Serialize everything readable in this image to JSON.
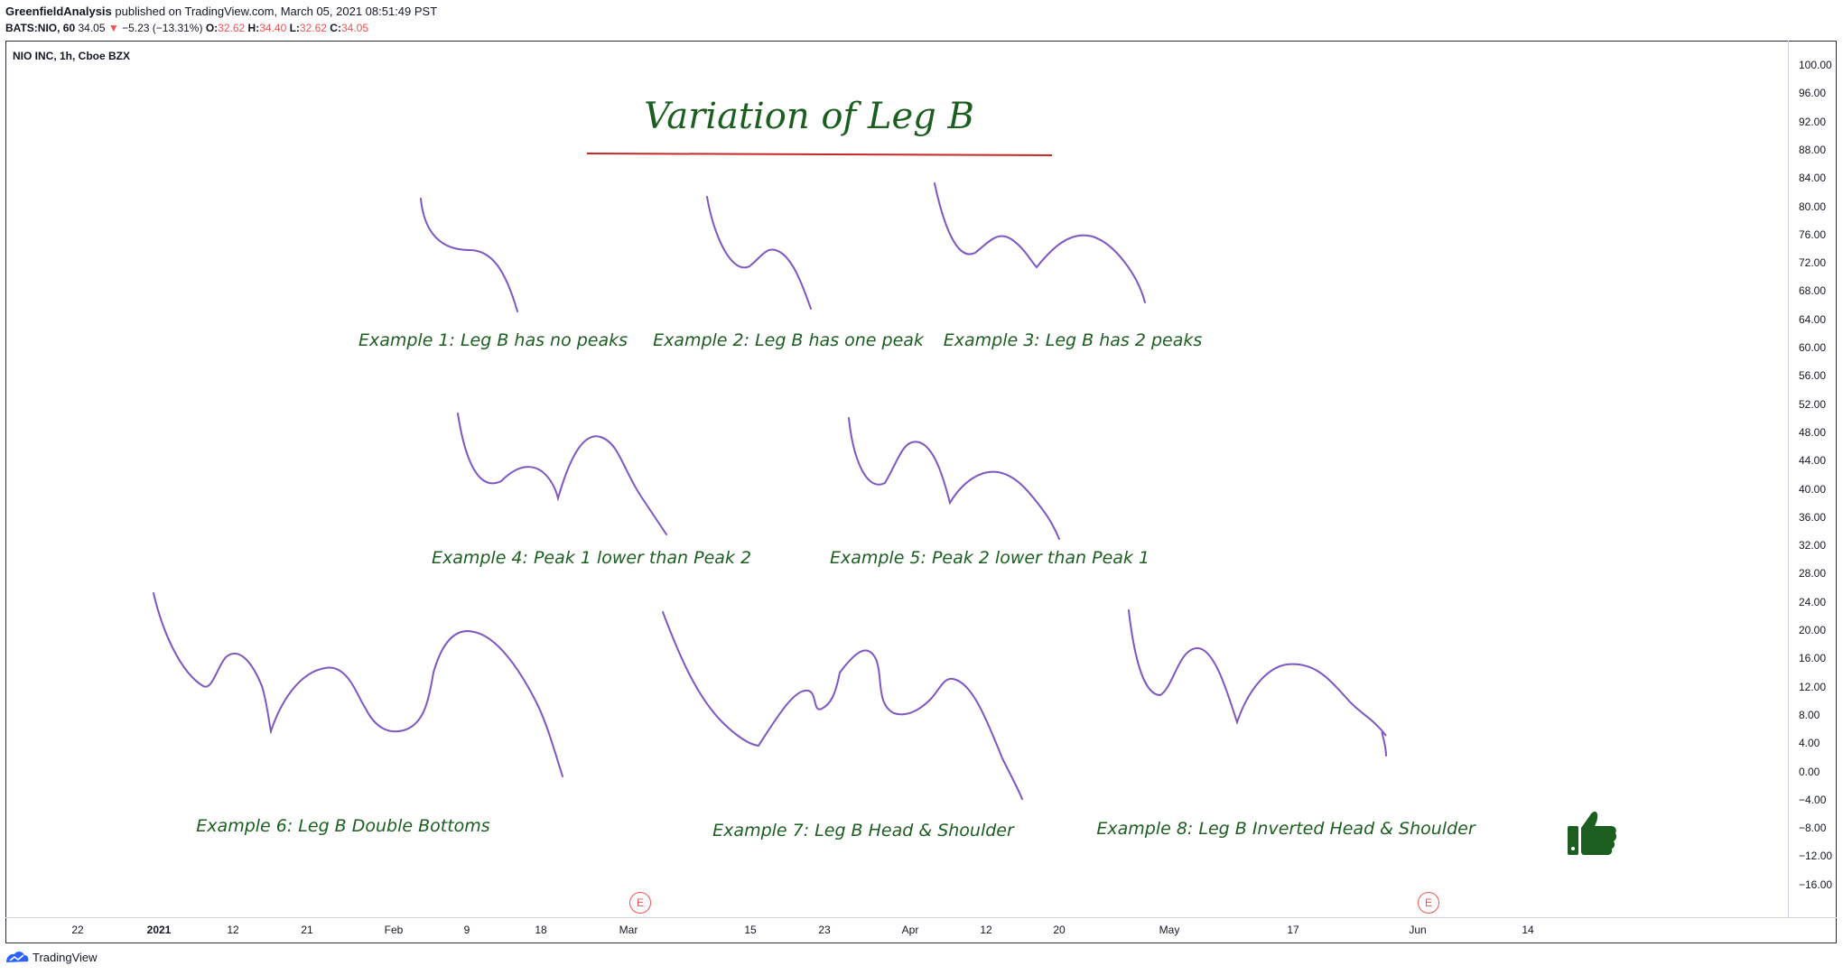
{
  "header": {
    "publisher": "GreenfieldAnalysis",
    "published_text": " published on TradingView.com, March 05, 2021 08:51:49 PST",
    "symbol_interval": "BATS:NIO, 60",
    "last_price": "34.05",
    "down_arrow": "▼",
    "change": "−5.23 (−13.31%)",
    "open_label": "O:",
    "open_value": "32.62",
    "high_label": "H:",
    "high_value": "34.40",
    "low_label": "L:",
    "low_value": "32.62",
    "close_label": "C:",
    "close_value": "34.05"
  },
  "chart": {
    "symbol_label": "NIO INC, 1h, Cboe BZX",
    "price_axis": [
      "100.00",
      "96.00",
      "92.00",
      "88.00",
      "84.00",
      "80.00",
      "76.00",
      "72.00",
      "68.00",
      "64.00",
      "60.00",
      "56.00",
      "52.00",
      "48.00",
      "44.00",
      "40.00",
      "36.00",
      "32.00",
      "28.00",
      "24.00",
      "20.00",
      "16.00",
      "12.00",
      "8.00",
      "4.00",
      "0.00",
      "−4.00",
      "−8.00",
      "−12.00",
      "−16.00"
    ],
    "time_axis": [
      {
        "label": "22",
        "bold": false
      },
      {
        "label": "2021",
        "bold": true
      },
      {
        "label": "12",
        "bold": false
      },
      {
        "label": "21",
        "bold": false
      },
      {
        "label": "Feb",
        "bold": false
      },
      {
        "label": "9",
        "bold": false
      },
      {
        "label": "18",
        "bold": false
      },
      {
        "label": "Mar",
        "bold": false
      },
      {
        "label": "15",
        "bold": false
      },
      {
        "label": "23",
        "bold": false
      },
      {
        "label": "Apr",
        "bold": false
      },
      {
        "label": "12",
        "bold": false
      },
      {
        "label": "20",
        "bold": false
      },
      {
        "label": "May",
        "bold": false
      },
      {
        "label": "17",
        "bold": false
      },
      {
        "label": "Jun",
        "bold": false
      },
      {
        "label": "14",
        "bold": false
      }
    ],
    "earnings_marker": "E"
  },
  "drawing": {
    "title": "Variation of Leg B",
    "examples": [
      "Example 1: Leg B has no peaks",
      "Example 2: Leg B has one peak",
      "Example 3: Leg B has 2 peaks",
      "Example 4: Peak 1 lower than Peak 2",
      "Example 5: Peak 2 lower than Peak 1",
      "Example 6: Leg B Double Bottoms",
      "Example 7: Leg B Head & Shoulder",
      "Example 8: Leg B Inverted Head & Shoulder"
    ],
    "title_color": "#1b5e20",
    "underline_color": "#c62828",
    "curve_color": "#7e57c2",
    "thumb_icon": "thumbs-up-icon"
  },
  "footer": {
    "brand": "TradingView"
  }
}
